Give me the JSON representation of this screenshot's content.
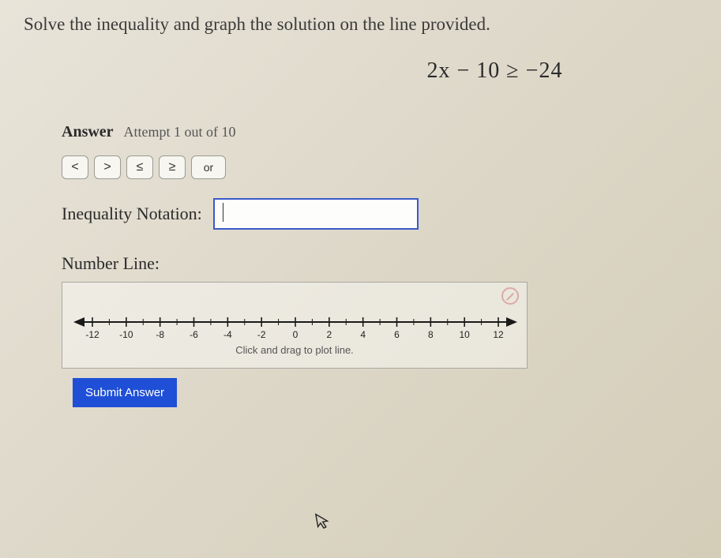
{
  "prompt": "Solve the inequality and graph the solution on the line provided.",
  "equation": "2x − 10 ≥ −24",
  "answer": {
    "label": "Answer",
    "attempt": "Attempt 1 out of 10"
  },
  "operators": {
    "lt": "<",
    "gt": ">",
    "le": "≤",
    "ge": "≥",
    "or": "or"
  },
  "notation": {
    "label": "Inequality Notation:",
    "value": ""
  },
  "numberline": {
    "label": "Number Line:",
    "ticks": [
      -12,
      -10,
      -8,
      -6,
      -4,
      -2,
      0,
      2,
      4,
      6,
      8,
      10,
      12
    ],
    "xmin": -12,
    "xmax": 12,
    "caption": "Click and drag to plot line.",
    "line_color": "#1a1a1a",
    "tick_font_size": 12
  },
  "submit_label": "Submit Answer"
}
